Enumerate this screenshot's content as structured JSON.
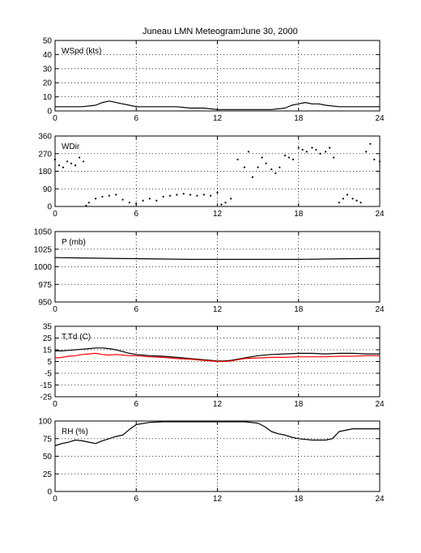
{
  "figure": {
    "title": "Juneau LMN Meteogram:",
    "date": "June 30, 2000"
  },
  "chart_data": [
    {
      "id": "wspd",
      "type": "line",
      "label": "WSpd (kts)",
      "xlim": [
        0,
        24
      ],
      "ylim": [
        0,
        50
      ],
      "xticks": [
        0,
        6,
        12,
        18,
        24
      ],
      "yticks": [
        0,
        10,
        20,
        30,
        40,
        50
      ],
      "grid": true,
      "series": [
        {
          "color": "#000000",
          "style": "line",
          "x": [
            0,
            1,
            2,
            3,
            3.5,
            4,
            4.5,
            5,
            5.5,
            6,
            7,
            8,
            9,
            10,
            11,
            12,
            13,
            14,
            15,
            16,
            17,
            17.5,
            18,
            18.5,
            19,
            19.5,
            20,
            21,
            22,
            23,
            24
          ],
          "y": [
            3,
            3,
            3,
            4,
            6,
            7,
            6,
            5,
            4,
            3,
            3,
            3,
            3,
            2,
            2,
            1,
            1,
            1,
            1,
            1,
            2,
            4,
            5,
            6,
            5,
            5,
            4,
            3,
            3,
            3,
            3
          ]
        }
      ]
    },
    {
      "id": "wdir",
      "type": "scatter",
      "label": "WDir",
      "xlim": [
        0,
        24
      ],
      "ylim": [
        0,
        360
      ],
      "xticks": [
        0,
        6,
        12,
        18,
        24
      ],
      "yticks": [
        0,
        90,
        180,
        270,
        360
      ],
      "grid": true,
      "series": [
        {
          "color": "#000000",
          "style": "dots",
          "x": [
            0,
            0.3,
            0.6,
            0.9,
            1.2,
            1.5,
            1.8,
            2.1,
            2.3,
            2.5,
            3,
            3.5,
            4,
            4.5,
            5,
            5.5,
            6,
            6.5,
            7,
            7.5,
            8,
            8.5,
            9,
            9.5,
            10,
            10.5,
            11,
            11.5,
            12,
            12.3,
            12.6,
            13,
            13.5,
            14,
            14.3,
            14.6,
            15,
            15.3,
            15.6,
            16,
            16.3,
            16.6,
            17,
            17.3,
            17.6,
            18,
            18.3,
            18.6,
            19,
            19.3,
            19.6,
            20,
            20.3,
            20.6,
            21,
            21.3,
            21.6,
            22,
            22.3,
            22.6,
            23,
            23.3,
            23.6,
            24
          ],
          "y": [
            240,
            210,
            200,
            230,
            220,
            210,
            250,
            230,
            5,
            20,
            40,
            50,
            55,
            60,
            35,
            20,
            15,
            30,
            40,
            30,
            50,
            55,
            60,
            65,
            60,
            55,
            60,
            55,
            70,
            10,
            20,
            40,
            240,
            200,
            280,
            150,
            200,
            250,
            220,
            190,
            170,
            200,
            260,
            250,
            240,
            300,
            290,
            280,
            300,
            290,
            270,
            280,
            300,
            250,
            20,
            40,
            60,
            40,
            30,
            20,
            280,
            320,
            240,
            230
          ]
        }
      ]
    },
    {
      "id": "pres",
      "type": "line",
      "label": "P (mb)",
      "xlim": [
        0,
        24
      ],
      "ylim": [
        950,
        1050
      ],
      "xticks": [
        0,
        6,
        12,
        18,
        24
      ],
      "yticks": [
        950,
        975,
        1000,
        1025,
        1050
      ],
      "grid": true,
      "series": [
        {
          "color": "#000000",
          "style": "line",
          "x": [
            0,
            2,
            4,
            6,
            8,
            10,
            12,
            14,
            16,
            18,
            20,
            22,
            24
          ],
          "y": [
            1013,
            1012.5,
            1012,
            1011.5,
            1011,
            1010.5,
            1010.5,
            1010.5,
            1010.5,
            1010.5,
            1011,
            1011.5,
            1012
          ]
        }
      ]
    },
    {
      "id": "temp",
      "type": "line",
      "label": "T,Td (C)",
      "xlim": [
        0,
        24
      ],
      "ylim": [
        -25,
        35
      ],
      "xticks": [
        0,
        6,
        12,
        18,
        24
      ],
      "yticks": [
        -25,
        -15,
        -5,
        5,
        15,
        25,
        35
      ],
      "grid": true,
      "series": [
        {
          "color": "#000000",
          "style": "line",
          "x": [
            0,
            0.5,
            1,
            1.5,
            2,
            2.5,
            3,
            3.5,
            4,
            4.5,
            5,
            5.5,
            6,
            7,
            8,
            9,
            10,
            11,
            12,
            12.5,
            13,
            13.5,
            14,
            15,
            16,
            17,
            18,
            19,
            20,
            21,
            22,
            23,
            24
          ],
          "y": [
            14,
            14,
            14.5,
            15,
            15.5,
            16,
            16.5,
            16.5,
            16,
            15,
            13.5,
            12,
            11,
            10,
            9.5,
            8.5,
            7.5,
            6.5,
            5.5,
            5.5,
            6,
            7,
            8,
            10,
            11,
            11.5,
            12,
            12,
            11.5,
            12,
            12,
            11.5,
            11.5
          ]
        },
        {
          "color": "#ff0000",
          "style": "line",
          "x": [
            0,
            0.5,
            1,
            1.5,
            2,
            2.5,
            3,
            3.5,
            4,
            4.5,
            5,
            5.5,
            6,
            7,
            8,
            9,
            10,
            11,
            12,
            12.5,
            13,
            13.5,
            14,
            15,
            16,
            17,
            18,
            19,
            20,
            21,
            22,
            23,
            24
          ],
          "y": [
            8,
            8.5,
            9.5,
            10,
            11,
            11.5,
            12,
            11,
            10.5,
            11,
            10.5,
            10,
            10,
            9,
            8.5,
            7.5,
            7,
            6,
            5,
            5,
            5.5,
            6.5,
            7.5,
            8,
            8.5,
            8.5,
            9,
            9,
            9,
            9.5,
            9.5,
            10,
            10
          ]
        }
      ]
    },
    {
      "id": "rh",
      "type": "line",
      "label": "RH (%)",
      "xlim": [
        0,
        24
      ],
      "ylim": [
        0,
        100
      ],
      "xticks": [
        0,
        6,
        12,
        18,
        24
      ],
      "yticks": [
        0,
        25,
        50,
        75,
        100
      ],
      "grid": true,
      "series": [
        {
          "color": "#000000",
          "style": "line",
          "x": [
            0,
            0.5,
            1,
            1.5,
            2,
            2.5,
            3,
            3.5,
            4,
            4.5,
            5,
            5.5,
            6,
            7,
            8,
            9,
            10,
            11,
            12,
            13,
            14,
            15,
            15.5,
            16,
            16.5,
            17,
            17.5,
            18,
            19,
            20,
            20.5,
            21,
            22,
            23,
            24
          ],
          "y": [
            65,
            68,
            70,
            73,
            72,
            70,
            68,
            72,
            75,
            78,
            80,
            88,
            95,
            98,
            99,
            99,
            99,
            99,
            99,
            99,
            99,
            97,
            92,
            85,
            82,
            80,
            77,
            75,
            73,
            73,
            75,
            85,
            89,
            89,
            89
          ]
        }
      ]
    }
  ]
}
